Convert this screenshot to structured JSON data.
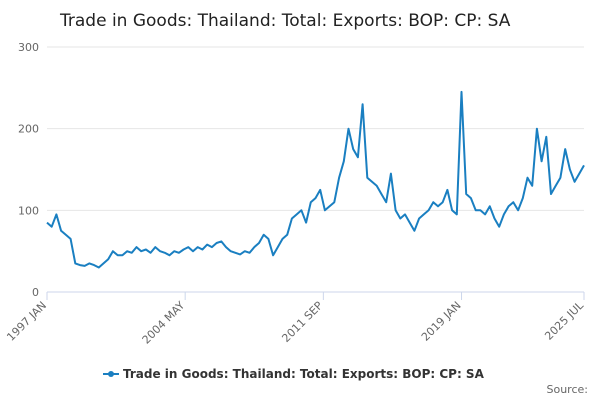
{
  "chart_data": {
    "type": "line",
    "title": "Trade in Goods: Thailand: Total: Exports: BOP: CP: SA",
    "source": "Source:",
    "x": [
      "1997 JAN",
      "1997 APR",
      "1997 JUL",
      "1997 OCT",
      "1998 JAN",
      "1998 APR",
      "1998 JUL",
      "1998 OCT",
      "1999 JAN",
      "1999 APR",
      "1999 JUL",
      "1999 OCT",
      "2000 JAN",
      "2000 APR",
      "2000 JUL",
      "2000 OCT",
      "2001 JAN",
      "2001 APR",
      "2001 JUL",
      "2001 OCT",
      "2002 JAN",
      "2002 APR",
      "2002 JUL",
      "2002 OCT",
      "2003 JAN",
      "2003 APR",
      "2003 JUL",
      "2003 OCT",
      "2004 JAN",
      "2004 APR",
      "2004 JUL",
      "2004 OCT",
      "2005 JAN",
      "2005 APR",
      "2005 JUL",
      "2005 OCT",
      "2006 JAN",
      "2006 APR",
      "2006 JUL",
      "2006 OCT",
      "2007 JAN",
      "2007 APR",
      "2007 JUL",
      "2007 OCT",
      "2008 JAN",
      "2008 APR",
      "2008 JUL",
      "2008 OCT",
      "2009 JAN",
      "2009 APR",
      "2009 JUL",
      "2009 OCT",
      "2010 JAN",
      "2010 APR",
      "2010 JUL",
      "2010 OCT",
      "2011 JAN",
      "2011 APR",
      "2011 JUL",
      "2011 OCT",
      "2012 JAN",
      "2012 APR",
      "2012 JUL",
      "2012 OCT",
      "2013 JAN",
      "2013 APR",
      "2013 JUL",
      "2013 OCT",
      "2014 JAN",
      "2014 APR",
      "2014 JUL",
      "2014 OCT",
      "2015 JAN",
      "2015 APR",
      "2015 JUL",
      "2015 OCT",
      "2016 JAN",
      "2016 APR",
      "2016 JUL",
      "2016 OCT",
      "2017 JAN",
      "2017 APR",
      "2017 JUL",
      "2017 OCT",
      "2018 JAN",
      "2018 APR",
      "2018 JUL",
      "2018 OCT",
      "2019 JAN",
      "2019 APR",
      "2019 JUL",
      "2019 OCT",
      "2020 JAN",
      "2020 APR",
      "2020 JUL",
      "2020 OCT",
      "2021 JAN",
      "2021 APR",
      "2021 JUL",
      "2021 OCT",
      "2022 JAN",
      "2022 APR",
      "2022 JUL",
      "2022 OCT",
      "2023 JAN",
      "2023 APR",
      "2023 JUL",
      "2023 OCT",
      "2024 JAN",
      "2024 APR",
      "2024 JUL",
      "2024 OCT",
      "2025 JAN",
      "2025 APR",
      "2025 JUL"
    ],
    "series": [
      {
        "name": "Trade in Goods: Thailand: Total: Exports: BOP: CP: SA",
        "color": "#1a7fc1",
        "values": [
          85,
          80,
          95,
          75,
          70,
          65,
          35,
          33,
          32,
          35,
          33,
          30,
          35,
          40,
          50,
          45,
          45,
          50,
          48,
          55,
          50,
          52,
          48,
          55,
          50,
          48,
          45,
          50,
          48,
          52,
          55,
          50,
          55,
          52,
          58,
          55,
          60,
          62,
          55,
          50,
          48,
          46,
          50,
          48,
          55,
          60,
          70,
          65,
          45,
          55,
          65,
          70,
          90,
          95,
          100,
          85,
          110,
          115,
          125,
          100,
          105,
          110,
          140,
          160,
          200,
          175,
          165,
          230,
          140,
          135,
          130,
          120,
          110,
          145,
          100,
          90,
          95,
          85,
          75,
          90,
          95,
          100,
          110,
          105,
          110,
          125,
          100,
          95,
          245,
          120,
          115,
          100,
          100,
          95,
          105,
          90,
          80,
          95,
          105,
          110,
          100,
          115,
          140,
          130,
          200,
          160,
          190,
          120,
          130,
          140,
          175,
          150,
          135,
          145,
          155
        ]
      }
    ],
    "ylim": [
      0,
      300
    ],
    "yticks": [
      0,
      100,
      200,
      300
    ],
    "xlim": [
      "1997 JAN",
      "2025 JUL"
    ],
    "xticks": [
      "1997 JAN",
      "2004 MAY",
      "2011 SEP",
      "2019 JAN",
      "2025 JUL"
    ],
    "grid": true
  }
}
